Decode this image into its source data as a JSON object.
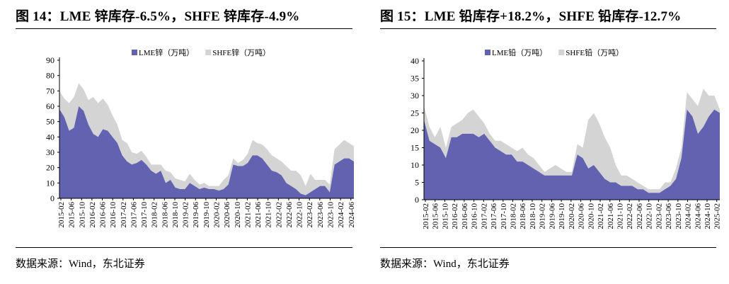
{
  "charts": [
    {
      "title": "图 14：LME 锌库存-6.5%，SHFE 锌库存-4.9%",
      "source": "数据来源：Wind，东北证券"
    },
    {
      "title": "图 15：LME 铅库存+18.2%，SHFE 铅库存-12.7%",
      "source": "数据来源：Wind，东北证券"
    }
  ],
  "chart_data": [
    {
      "type": "area",
      "stacked": true,
      "title": "",
      "xlabel": "",
      "ylabel": "",
      "ylim": [
        0,
        90
      ],
      "yticks": [
        0,
        10,
        20,
        30,
        40,
        50,
        60,
        70,
        80,
        90
      ],
      "x_ticks": [
        "2015-02",
        "2015-06",
        "2015-10",
        "2016-02",
        "2016-06",
        "2016-10",
        "2017-02",
        "2017-06",
        "2017-10",
        "2018-02",
        "2018-06",
        "2018-10",
        "2019-02",
        "2019-06",
        "2019-10",
        "2020-02",
        "2020-06",
        "2020-10",
        "2021-02",
        "2021-06",
        "2021-10",
        "2022-02",
        "2022-06",
        "2022-10",
        "2023-02",
        "2023-06",
        "2023-10",
        "2024-02",
        "2024-06"
      ],
      "legend_position": "top",
      "grid": false,
      "series": [
        {
          "name": "LME锌（万吨）",
          "color": "#6262b0",
          "values": [
            58,
            53,
            44,
            46,
            60,
            57,
            48,
            42,
            40,
            45,
            44,
            40,
            36,
            28,
            24,
            22,
            23,
            25,
            22,
            18,
            16,
            18,
            10,
            12,
            7,
            6,
            6,
            10,
            8,
            6,
            7,
            6,
            6,
            5,
            6,
            9,
            22,
            21,
            21,
            23,
            28,
            28,
            26,
            22,
            18,
            17,
            15,
            10,
            8,
            6,
            3,
            2,
            4,
            6,
            8,
            8,
            4,
            22,
            24,
            26,
            26,
            24
          ]
        },
        {
          "name": "SHFE锌（万吨）",
          "color": "#d4d4d4",
          "values": [
            12,
            12,
            18,
            20,
            15,
            14,
            16,
            24,
            22,
            20,
            17,
            14,
            12,
            10,
            12,
            8,
            6,
            6,
            5,
            4,
            6,
            4,
            8,
            5,
            6,
            6,
            5,
            6,
            4,
            3,
            3,
            2,
            2,
            3,
            6,
            6,
            4,
            2,
            4,
            6,
            10,
            8,
            9,
            10,
            10,
            9,
            9,
            11,
            10,
            12,
            12,
            6,
            12,
            6,
            4,
            4,
            5,
            10,
            11,
            12,
            10,
            10
          ]
        }
      ]
    },
    {
      "type": "area",
      "stacked": true,
      "title": "",
      "xlabel": "",
      "ylabel": "",
      "ylim": [
        0,
        40
      ],
      "yticks": [
        0,
        5,
        10,
        15,
        20,
        25,
        30,
        35,
        40
      ],
      "x_ticks": [
        "2015-02",
        "2015-06",
        "2015-10",
        "2016-02",
        "2016-06",
        "2016-10",
        "2017-02",
        "2017-06",
        "2017-10",
        "2018-02",
        "2018-06",
        "2018-10",
        "2019-02",
        "2019-06",
        "2019-10",
        "2020-02",
        "2020-06",
        "2020-10",
        "2021-02",
        "2021-06",
        "2021-10",
        "2022-02",
        "2022-06",
        "2022-10",
        "2023-02",
        "2023-06",
        "2023-10",
        "2024-02",
        "2024-06",
        "2024-10",
        "2025-02"
      ],
      "legend_position": "top",
      "grid": false,
      "series": [
        {
          "name": "LME铅（万吨）",
          "color": "#6262b0",
          "values": [
            23,
            17,
            16,
            15,
            12,
            18,
            18,
            19,
            19,
            19,
            18,
            19,
            17,
            15,
            14,
            13,
            13,
            11,
            11,
            10,
            9,
            8,
            7,
            7,
            7,
            7,
            7,
            7,
            13,
            12,
            9,
            10,
            8,
            6,
            5,
            5,
            4,
            4,
            4,
            3,
            3,
            2,
            2,
            2,
            3,
            4,
            6,
            12,
            26,
            24,
            19,
            21,
            24,
            26,
            25
          ]
        },
        {
          "name": "SHFE铅（万吨）",
          "color": "#d4d4d4",
          "values": [
            4,
            4,
            2,
            6,
            3,
            3,
            4,
            4,
            6,
            7,
            6,
            3,
            2,
            2,
            3,
            3,
            2,
            3,
            4,
            3,
            3,
            2,
            1,
            2,
            3,
            2,
            1,
            1,
            3,
            3,
            14,
            15,
            14,
            12,
            10,
            5,
            3,
            3,
            2,
            2,
            1,
            1,
            1,
            1,
            2,
            1,
            3,
            3,
            5,
            5,
            8,
            11,
            6,
            4,
            1
          ]
        }
      ]
    }
  ]
}
